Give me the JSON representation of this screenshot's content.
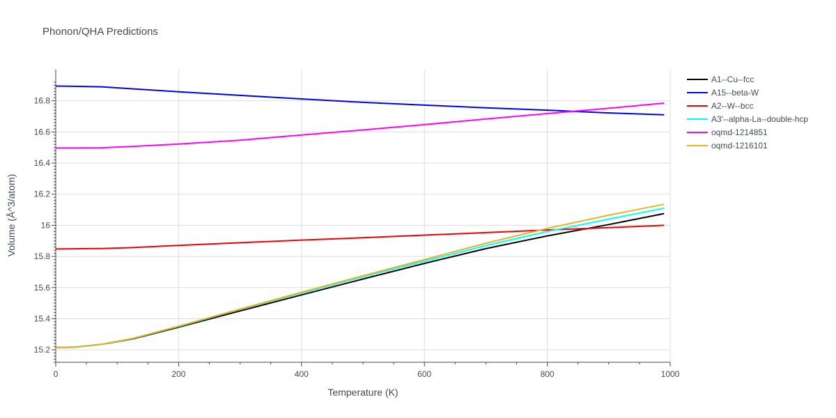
{
  "chart_data": {
    "type": "line",
    "title": "Phonon/QHA Predictions",
    "xlabel": "Temperature (K)",
    "ylabel": "Volume (Å^3/atom)",
    "xlim": [
      0,
      1000
    ],
    "ylim": [
      15.12,
      17.0
    ],
    "xticks": [
      0,
      200,
      400,
      600,
      800,
      1000
    ],
    "xtick_labels": [
      "0",
      "200",
      "400",
      "600",
      "800",
      "1000"
    ],
    "yticks": [
      15.2,
      15.4,
      15.6,
      15.8,
      16.0,
      16.2,
      16.4,
      16.6,
      16.8
    ],
    "ytick_labels": [
      "15.2",
      "15.4",
      "15.6",
      "15.8",
      "16",
      "16.2",
      "16.4",
      "16.6",
      "16.8"
    ],
    "grid": true,
    "legend_position": "right",
    "x": [
      0,
      30,
      75,
      125,
      200,
      300,
      400,
      500,
      600,
      700,
      800,
      900,
      990
    ],
    "series": [
      {
        "name": "A1--Cu--fcc",
        "color": "#000000",
        "values": [
          15.215,
          15.217,
          15.235,
          15.27,
          15.345,
          15.45,
          15.553,
          15.655,
          15.755,
          15.85,
          15.932,
          16.005,
          16.075
        ]
      },
      {
        "name": "A15--beta-W",
        "color": "#0000ee",
        "values": [
          16.895,
          16.893,
          16.89,
          16.877,
          16.858,
          16.835,
          16.812,
          16.79,
          16.772,
          16.755,
          16.74,
          16.722,
          16.71
        ]
      },
      {
        "name": "A2--W--bcc",
        "color": "#ee0000",
        "values": [
          15.848,
          15.849,
          15.851,
          15.857,
          15.871,
          15.888,
          15.905,
          15.92,
          15.937,
          15.953,
          15.97,
          15.985,
          16.0
        ]
      },
      {
        "name": "A3'--alpha-La--double-hcp",
        "color": "#00ffff",
        "values": [
          15.215,
          15.217,
          15.236,
          15.272,
          15.35,
          15.46,
          15.565,
          15.67,
          15.77,
          15.87,
          15.96,
          16.04,
          16.11
        ]
      },
      {
        "name": "oqmd-1214851",
        "color": "#ff00ff",
        "values": [
          16.497,
          16.497,
          16.498,
          16.507,
          16.522,
          16.547,
          16.58,
          16.613,
          16.647,
          16.683,
          16.718,
          16.752,
          16.785
        ]
      },
      {
        "name": "oqmd-1216101",
        "color": "#e6b422",
        "values": [
          15.213,
          15.216,
          15.236,
          15.273,
          15.352,
          15.462,
          15.57,
          15.676,
          15.78,
          15.885,
          15.98,
          16.065,
          16.135
        ]
      }
    ]
  }
}
